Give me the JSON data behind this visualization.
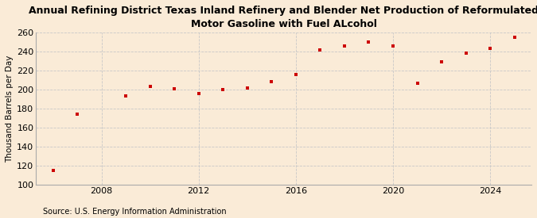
{
  "title": "Annual Refining District Texas Inland Refinery and Blender Net Production of Reformulated\nMotor Gasoline with Fuel ALcohol",
  "ylabel": "Thousand Barrels per Day",
  "source": "Source: U.S. Energy Information Administration",
  "background_color": "#faebd7",
  "years": [
    2006,
    2007,
    2009,
    2010,
    2011,
    2012,
    2013,
    2014,
    2015,
    2016,
    2017,
    2018,
    2019,
    2020,
    2021,
    2022,
    2023,
    2024,
    2025
  ],
  "values": [
    115,
    174,
    193,
    203,
    201,
    196,
    200,
    202,
    208,
    216,
    242,
    246,
    250,
    246,
    207,
    229,
    238,
    243,
    255
  ],
  "marker_color": "#cc0000",
  "ylim": [
    100,
    260
  ],
  "yticks": [
    100,
    120,
    140,
    160,
    180,
    200,
    220,
    240,
    260
  ],
  "xlim": [
    2005.3,
    2025.7
  ],
  "xticks": [
    2008,
    2012,
    2016,
    2020,
    2024
  ],
  "grid_color": "#c8c8c8",
  "title_fontsize": 9,
  "axis_fontsize": 7.5,
  "tick_fontsize": 8,
  "source_fontsize": 7
}
